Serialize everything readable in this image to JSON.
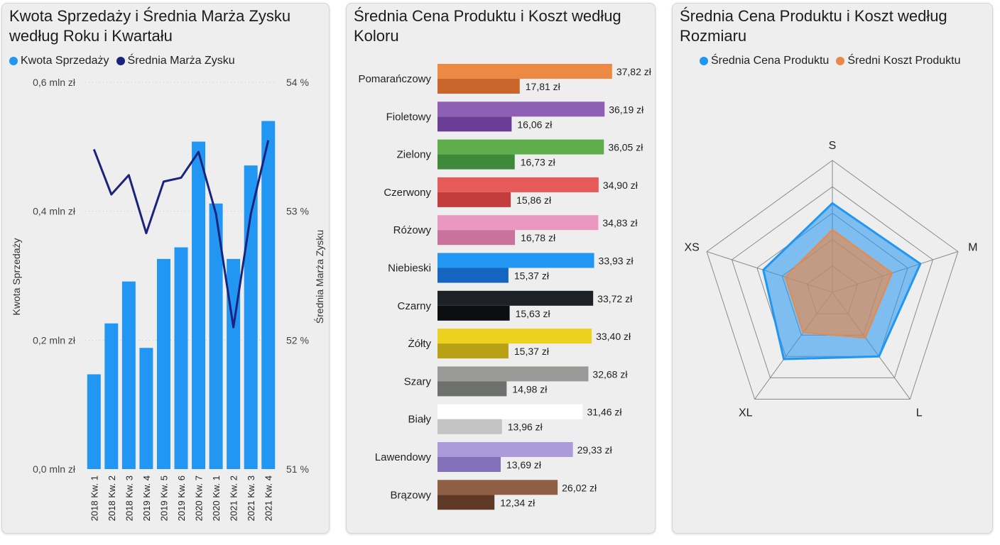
{
  "chart_data": [
    {
      "type": "bar",
      "title": "Kwota Sprzedaży i Średnia Marża Zysku według Roku i Kwartału",
      "title_line1": "Kwota Sprzedaży i Średnia Marża Zysku",
      "title_line2": "według Roku i Kwartału",
      "ylabel": "Kwota Sprzedaży",
      "y2label": "Średnia Marża Zysku",
      "legend_position": "top-left",
      "grid": true,
      "categories": [
        "2018 Kw. 1",
        "2018 Kw. 2",
        "2018 Kw. 3",
        "2019 Kw. 4",
        "2019 Kw. 5",
        "2019 Kw. 6",
        "2020 Kw. 7",
        "2020 Kw. 1",
        "2021 Kw. 2",
        "2021 Kw. 3",
        "2021 Kw. 4"
      ],
      "ylim": [
        0,
        0.6
      ],
      "y2lim": [
        51,
        54
      ],
      "y_ticks": [
        {
          "value": 0.0,
          "label": "0,0 mln zł"
        },
        {
          "value": 0.2,
          "label": "0,2 mln zł"
        },
        {
          "value": 0.4,
          "label": "0,4 mln zł"
        },
        {
          "value": 0.6,
          "label": "0,6 mln zł"
        }
      ],
      "y2_ticks": [
        {
          "value": 51,
          "label": "51 %"
        },
        {
          "value": 52,
          "label": "52 %"
        },
        {
          "value": 53,
          "label": "53 %"
        },
        {
          "value": 54,
          "label": "54 %"
        }
      ],
      "series": [
        {
          "name": "Kwota Sprzedaży",
          "kind": "bar",
          "axis": "y",
          "color": "#2196f3",
          "values": [
            0.147,
            0.226,
            0.291,
            0.188,
            0.326,
            0.344,
            0.508,
            0.412,
            0.326,
            0.471,
            0.54
          ]
        },
        {
          "name": "Średnia Marża Zysku",
          "kind": "line",
          "axis": "y2",
          "color": "#1a237e",
          "values": [
            53.48,
            53.13,
            53.28,
            52.83,
            53.23,
            53.26,
            53.46,
            52.98,
            52.1,
            52.98,
            53.55
          ]
        }
      ]
    },
    {
      "type": "bar",
      "orientation": "horizontal",
      "title": "Średnia Cena Produktu i Koszt według Koloru",
      "title_line1": "Średnia Cena Produktu i Koszt według",
      "title_line2": "Koloru",
      "xlim": [
        0,
        40
      ],
      "categories": [
        "Pomarańczowy",
        "Fioletowy",
        "Zielony",
        "Czerwony",
        "Różowy",
        "Niebieski",
        "Czarny",
        "Żółty",
        "Szary",
        "Biały",
        "Lawendowy",
        "Brązowy"
      ],
      "series": [
        {
          "name": "Średnia Cena Produktu",
          "values": [
            37.82,
            36.19,
            36.05,
            34.9,
            34.83,
            33.93,
            33.72,
            33.4,
            32.68,
            31.46,
            29.33,
            26.02
          ],
          "labels": [
            "37,82 zł",
            "36,19 zł",
            "36,05 zł",
            "34,90 zł",
            "34,83 zł",
            "33,93 zł",
            "33,72 zł",
            "33,40 zł",
            "32,68 zł",
            "31,46 zł",
            "29,33 zł",
            "26,02 zł"
          ]
        },
        {
          "name": "Średni Koszt Produktu",
          "values": [
            17.81,
            16.06,
            16.73,
            15.86,
            16.78,
            15.37,
            15.63,
            15.37,
            14.98,
            13.96,
            13.69,
            12.34
          ],
          "labels": [
            "17,81 zł",
            "16,06 zł",
            "16,73 zł",
            "15,86 zł",
            "16,78 zł",
            "15,37 zł",
            "15,63 zł",
            "15,37 zł",
            "14,98 zł",
            "13,96 zł",
            "13,69 zł",
            "12,34 zł"
          ]
        }
      ],
      "colors_price": [
        "#ec8a45",
        "#8e5fb3",
        "#5fae4e",
        "#e65a5a",
        "#eb98c0",
        "#2196f3",
        "#1e2226",
        "#ecd21e",
        "#9a9a98",
        "#ffffff",
        "#ac9bdb",
        "#8e5e45"
      ],
      "colors_cost": [
        "#c9662b",
        "#6a3d96",
        "#3f8a3a",
        "#c33d3d",
        "#c9739c",
        "#1565c0",
        "#0c0e10",
        "#b8a214",
        "#6e706e",
        "#c4c4c4",
        "#8270b8",
        "#5e3a26"
      ]
    },
    {
      "type": "radar",
      "title": "Średnia Cena Produktu i Koszt według Rozmiaru",
      "title_line1": "Średnia Cena Produktu i Koszt według",
      "title_line2": "Rozmiaru",
      "legend_position": "top-center",
      "categories": [
        "S",
        "M",
        "L",
        "XL",
        "XS"
      ],
      "rmax": 40,
      "series": [
        {
          "name": "Średnia Cena Produktu",
          "color": "#2196f3",
          "values": [
            27,
            28,
            24,
            25,
            22
          ]
        },
        {
          "name": "Średni Koszt Produktu",
          "color": "#e8894a",
          "values": [
            19,
            19,
            17,
            15,
            15
          ]
        }
      ]
    }
  ]
}
